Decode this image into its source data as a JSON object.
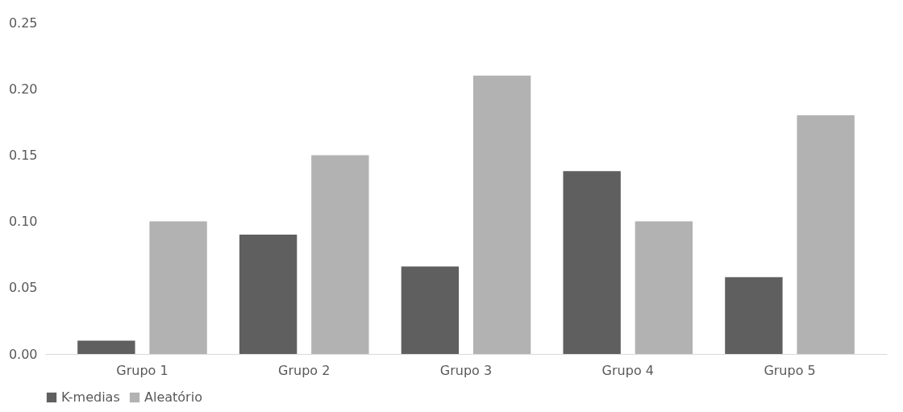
{
  "chart_data": {
    "type": "bar",
    "categories": [
      "Grupo 1",
      "Grupo 2",
      "Grupo 3",
      "Grupo 4",
      "Grupo 5"
    ],
    "series": [
      {
        "name": "K-medias",
        "color": "#5f5f5f",
        "values": [
          0.01,
          0.09,
          0.066,
          0.138,
          0.058
        ]
      },
      {
        "name": "Aleatório",
        "color": "#b2b2b2",
        "values": [
          0.1,
          0.15,
          0.21,
          0.1,
          0.18
        ]
      }
    ],
    "ylim": [
      0,
      0.25
    ],
    "yticks": [
      {
        "value": 0,
        "label": "0.00"
      },
      0.05,
      {
        "value": 0.1,
        "label": "0.10"
      },
      0.15,
      {
        "value": 0.2,
        "label": "0.20"
      },
      0.25
    ],
    "grid": false,
    "legend": "bottom"
  }
}
